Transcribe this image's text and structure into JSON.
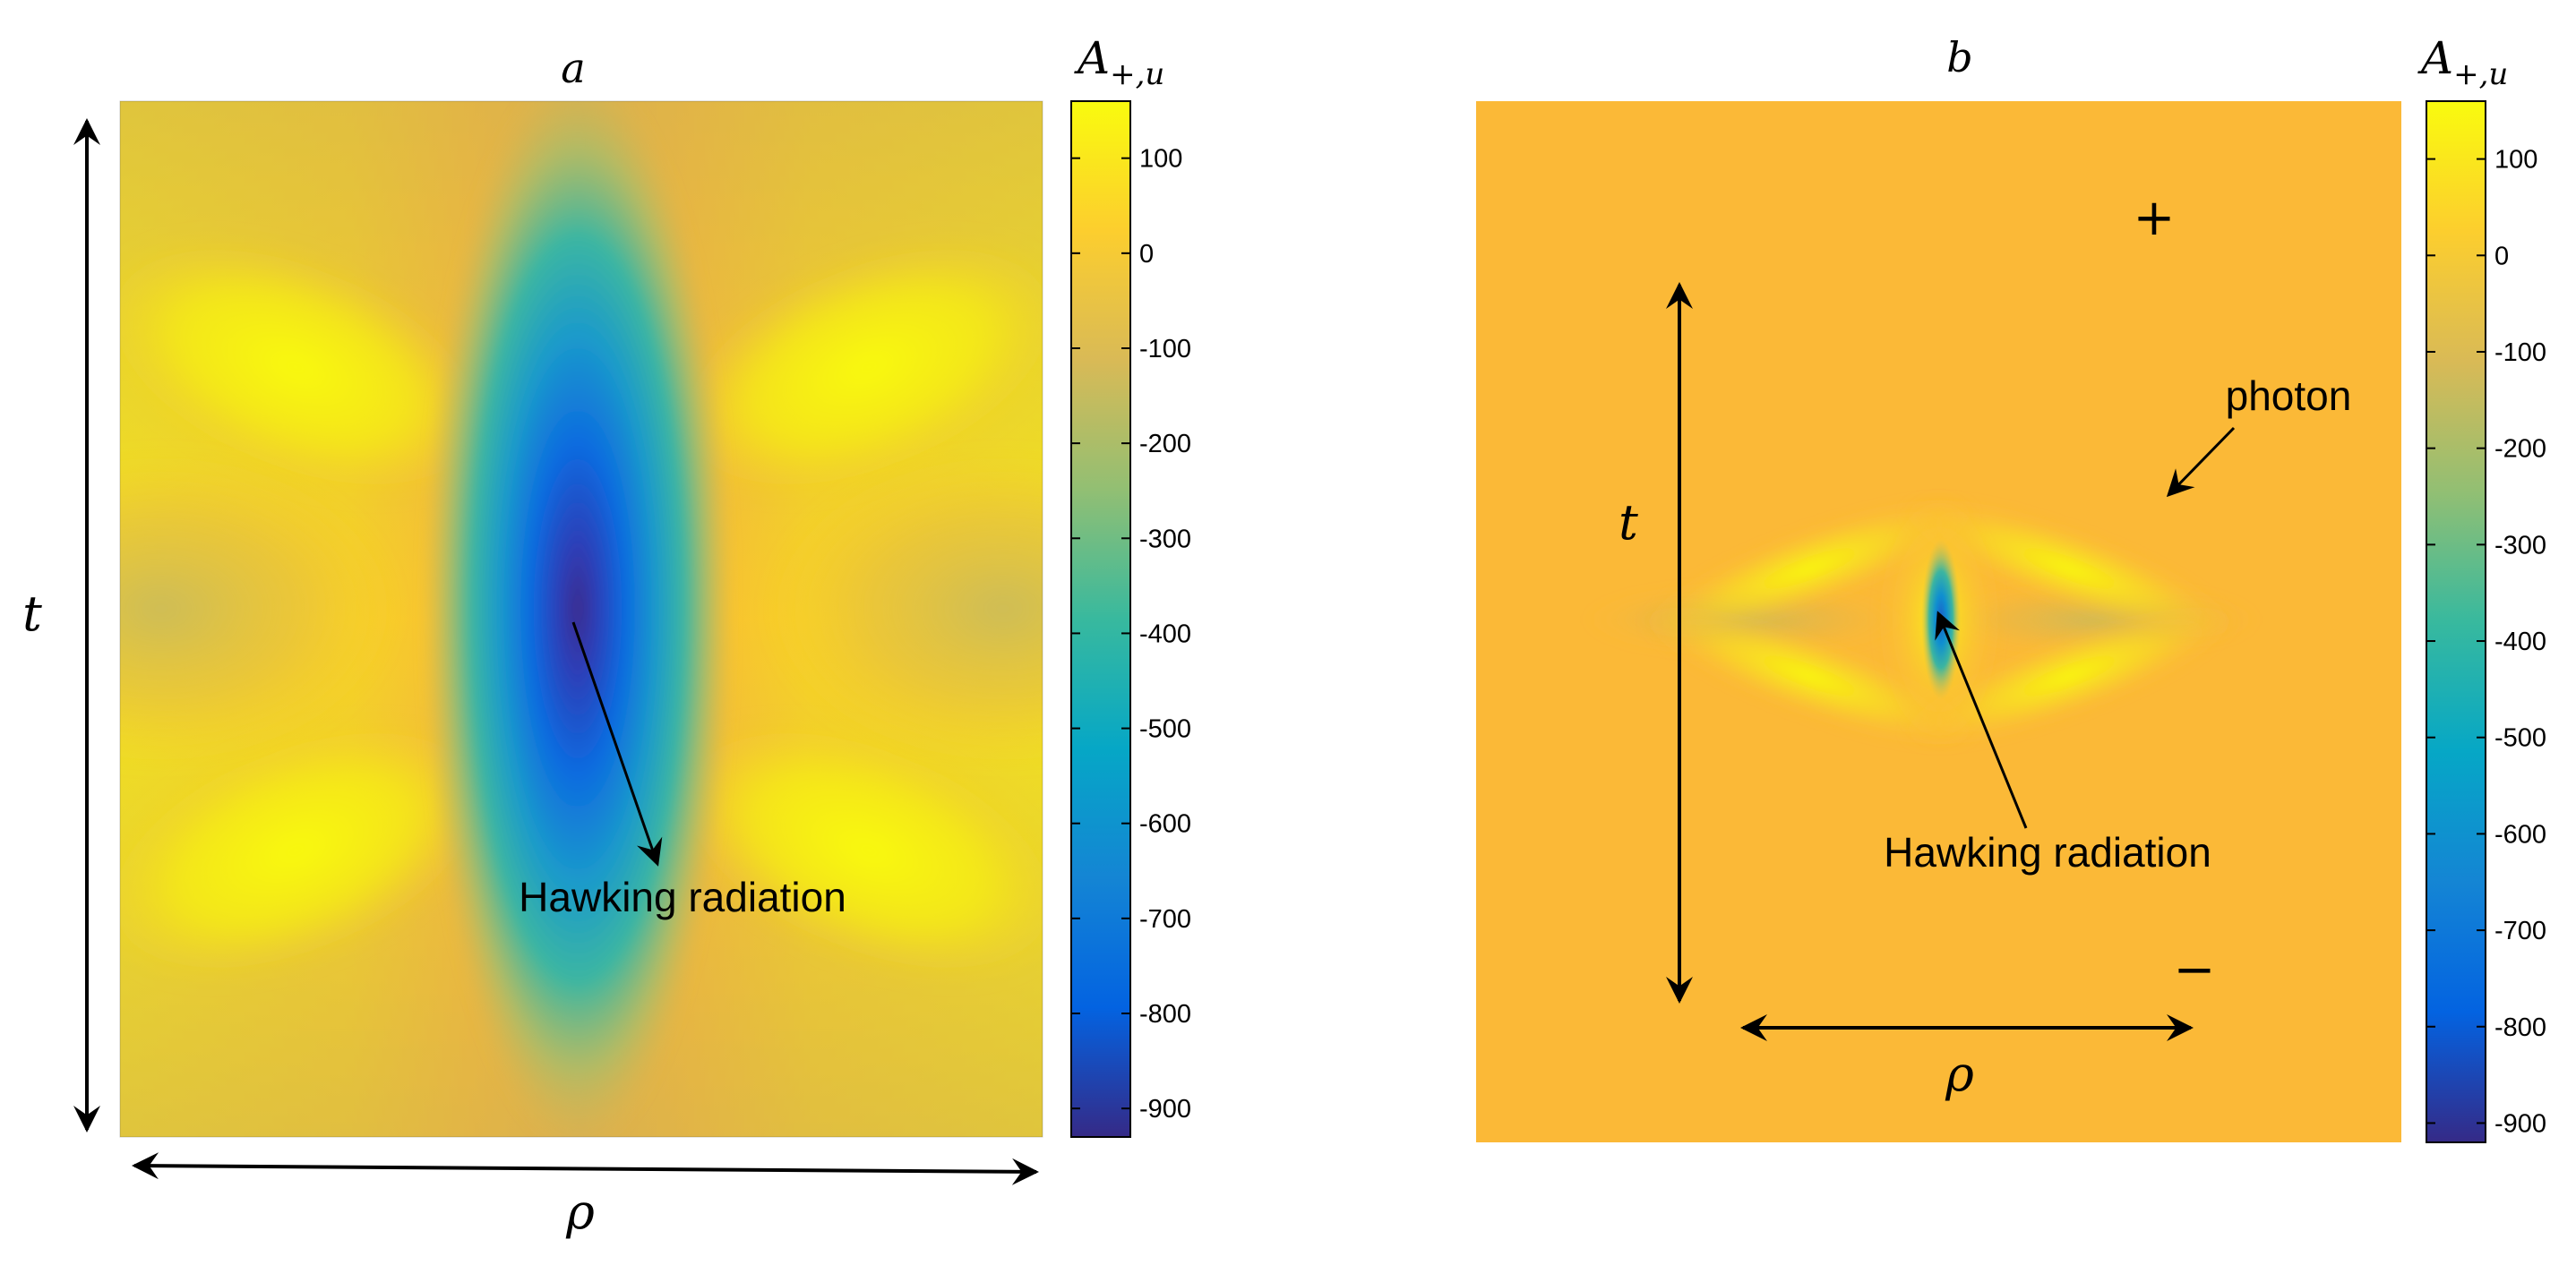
{
  "chart_data": [
    {
      "type": "heatmap",
      "panel": "a",
      "title": "a",
      "xlabel": "ρ",
      "ylabel": "t",
      "colorbar": {
        "title_main": "A",
        "title_sub": "+,u",
        "range": [
          -930,
          160
        ],
        "ticks": [
          100,
          0,
          -100,
          -200,
          -300,
          -400,
          -500,
          -600,
          -700,
          -800,
          -900
        ],
        "tick_labels": [
          "100",
          "0",
          "-100",
          "-200",
          "-300",
          "-400",
          "-500",
          "-600",
          "-700",
          "-800",
          "-900"
        ],
        "colormap": "parula"
      },
      "field": {
        "background_value": 30,
        "center_minimum_value": -930,
        "lobe_maximum_value": 160
      },
      "annotations": [
        {
          "text": "Hawking radiation"
        }
      ]
    },
    {
      "type": "heatmap",
      "panel": "b",
      "title": "b",
      "xlabel": "ρ",
      "ylabel": "t",
      "colorbar": {
        "title_main": "A",
        "title_sub": "+,u",
        "range": [
          -920,
          160
        ],
        "ticks": [
          100,
          0,
          -100,
          -200,
          -300,
          -400,
          -500,
          -600,
          -700,
          -800,
          -900
        ],
        "tick_labels": [
          "100",
          "0",
          "-100",
          "-200",
          "-300",
          "-400",
          "-500",
          "-600",
          "-700",
          "-800",
          "-900"
        ],
        "colormap": "parula"
      },
      "field": {
        "background_value": 30,
        "center_minimum_value": -600,
        "lobe_maximum_value": 150
      },
      "annotations": [
        {
          "text": "Hawking radiation"
        },
        {
          "text": "photon"
        },
        {
          "text": "+"
        },
        {
          "text": "−"
        }
      ]
    }
  ],
  "colors": {
    "parula_stops": [
      "#352a87",
      "#0363e1",
      "#1485d4",
      "#06a7c6",
      "#38b99e",
      "#92bf73",
      "#d9ba56",
      "#fcce2e",
      "#f9fb0e"
    ],
    "background": "#fbb937"
  }
}
